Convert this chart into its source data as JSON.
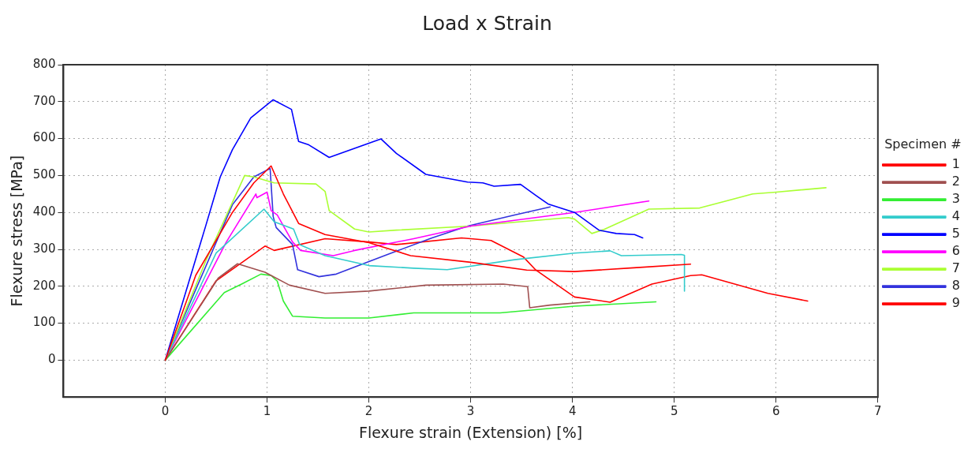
{
  "chart_data": {
    "type": "line",
    "title": "Load x Strain",
    "xlabel": "Flexure strain (Extension) [%]",
    "ylabel": "Flexure stress [MPa]",
    "legend_title": "Specimen #",
    "legend": "right",
    "grid": true,
    "marker": "none",
    "line_style": "solid",
    "xlim": [
      -1,
      7
    ],
    "xticks": [
      0,
      1,
      2,
      3,
      4,
      5,
      6,
      7
    ],
    "ylim": [
      -100,
      800
    ],
    "yticks": [
      0,
      100,
      200,
      300,
      400,
      500,
      600,
      700,
      800
    ],
    "series": [
      {
        "name": "1",
        "color": "#ff0000",
        "x": [
          0,
          0.3,
          0.66,
          0.87,
          1.04,
          1.16,
          1.31,
          1.57,
          2.0,
          2.41,
          3.0,
          3.55,
          4.02,
          4.6,
          5.16
        ],
        "values": [
          0,
          230,
          400,
          480,
          526,
          450,
          370,
          340,
          318,
          283,
          265,
          244,
          240,
          250,
          260
        ]
      },
      {
        "name": "2",
        "color": "#a05050",
        "x": [
          0,
          0.52,
          0.71,
          0.98,
          1.22,
          1.57,
          2.0,
          2.56,
          3.32,
          3.56,
          3.58,
          3.78,
          4.17
        ],
        "values": [
          0,
          222,
          261,
          238,
          203,
          181,
          187,
          203,
          206,
          199,
          142,
          149,
          158
        ]
      },
      {
        "name": "3",
        "color": "#33ee33",
        "x": [
          0,
          0.58,
          0.75,
          0.94,
          1.04,
          1.1,
          1.16,
          1.25,
          1.57,
          2.0,
          2.44,
          3.29,
          4.02,
          4.82
        ],
        "values": [
          0,
          183,
          206,
          233,
          229,
          214,
          160,
          119,
          114,
          114,
          128,
          128,
          146,
          158
        ]
      },
      {
        "name": "4",
        "color": "#33cccc",
        "x": [
          0,
          0.5,
          0.97,
          1.07,
          1.26,
          1.32,
          1.57,
          2.0,
          2.44,
          2.77,
          3.43,
          4.02,
          4.37,
          4.48,
          5.07,
          5.1,
          5.1
        ],
        "values": [
          0,
          290,
          409,
          375,
          355,
          313,
          283,
          256,
          249,
          245,
          272,
          290,
          296,
          283,
          286,
          284,
          187
        ]
      },
      {
        "name": "5",
        "color": "#0000ff",
        "x": [
          0,
          0.4,
          0.54,
          0.66,
          0.84,
          1.06,
          1.24,
          1.31,
          1.41,
          1.61,
          2.12,
          2.27,
          2.56,
          2.97,
          3.12,
          3.23,
          3.49,
          3.64,
          3.76,
          4.02,
          4.26,
          4.43,
          4.61,
          4.69
        ],
        "values": [
          0,
          366,
          496,
          570,
          656,
          705,
          679,
          592,
          583,
          549,
          599,
          560,
          503,
          482,
          480,
          471,
          476,
          446,
          423,
          400,
          352,
          343,
          340,
          331
        ]
      },
      {
        "name": "6",
        "color": "#ff00ff",
        "x": [
          0,
          0.6,
          0.89,
          0.9,
          1.0,
          1.04,
          1.1,
          1.25,
          1.33,
          1.65,
          1.86,
          2.44,
          3.0,
          4.02,
          4.75
        ],
        "values": [
          0,
          320,
          450,
          440,
          455,
          405,
          393,
          320,
          297,
          283,
          297,
          329,
          363,
          400,
          431
        ]
      },
      {
        "name": "7",
        "color": "#aaff33",
        "x": [
          0,
          0.4,
          0.78,
          0.87,
          1.07,
          1.48,
          1.57,
          1.61,
          1.86,
          2.0,
          2.27,
          3.0,
          3.96,
          4.02,
          4.19,
          4.31,
          4.75,
          5.25,
          5.77,
          6.0,
          6.49
        ],
        "values": [
          0,
          270,
          500,
          496,
          480,
          477,
          457,
          405,
          355,
          347,
          352,
          363,
          386,
          382,
          343,
          354,
          409,
          412,
          450,
          455,
          467
        ]
      },
      {
        "name": "8",
        "color": "#3333dd",
        "x": [
          0,
          0.66,
          0.87,
          1.03,
          1.06,
          1.09,
          1.25,
          1.3,
          1.51,
          1.68,
          2.0,
          2.27,
          2.62,
          2.97,
          3.43,
          3.78
        ],
        "values": [
          0,
          421,
          496,
          519,
          389,
          359,
          313,
          245,
          226,
          233,
          267,
          295,
          331,
          363,
          393,
          415
        ]
      },
      {
        "name": "9",
        "color": "#ff0000",
        "x": [
          0,
          0.5,
          0.98,
          1.07,
          1.57,
          2.0,
          2.27,
          2.91,
          3.2,
          3.52,
          3.64,
          4.02,
          4.37,
          4.78,
          5.16,
          5.27,
          5.92,
          6.31
        ],
        "values": [
          0,
          215,
          309,
          297,
          329,
          320,
          313,
          331,
          324,
          279,
          244,
          171,
          157,
          206,
          229,
          231,
          181,
          160
        ]
      }
    ]
  }
}
